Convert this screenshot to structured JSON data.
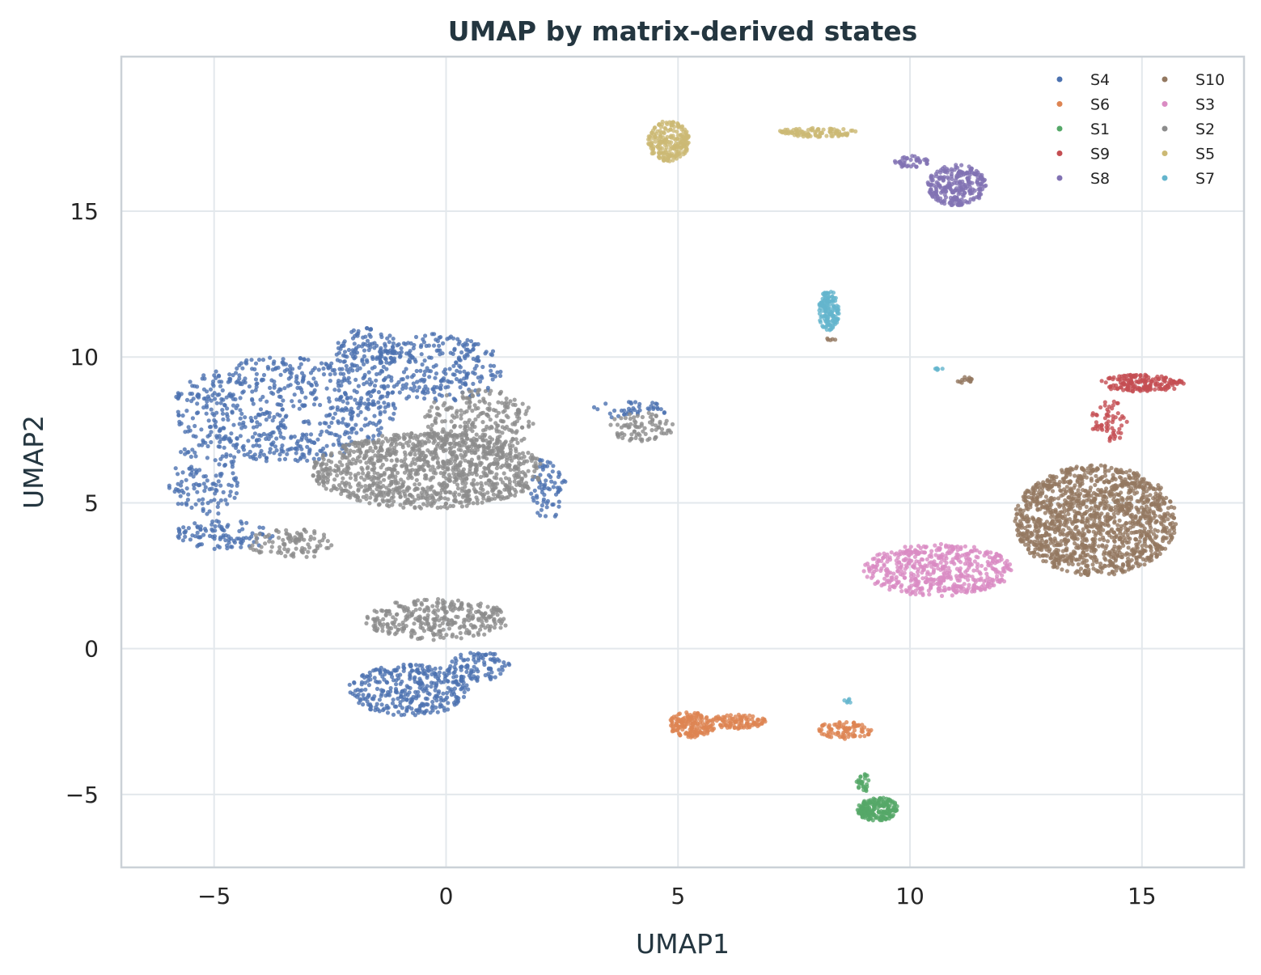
{
  "chart_data": {
    "type": "scatter",
    "title": "UMAP by matrix-derived states",
    "xlabel": "UMAP1",
    "ylabel": "UMAP2",
    "xlim": [
      -7,
      17.2
    ],
    "ylim": [
      -7.5,
      20.3
    ],
    "xticks": [
      -5,
      0,
      5,
      10,
      15
    ],
    "yticks": [
      -5,
      0,
      5,
      10,
      15
    ],
    "xtick_labels": [
      "−5",
      "0",
      "5",
      "10",
      "15"
    ],
    "ytick_labels": [
      "−5",
      "0",
      "5",
      "10",
      "15"
    ],
    "grid": true,
    "legend_position": "top-right",
    "legend_columns": 2,
    "series": [
      {
        "name": "S4",
        "color": "#4c72b0",
        "clusters": [
          {
            "cx": -3.5,
            "cy": 8.2,
            "rx": 2.4,
            "ry": 1.8,
            "n": 650
          },
          {
            "cx": -1.7,
            "cy": 10.2,
            "rx": 0.7,
            "ry": 0.8,
            "n": 120
          },
          {
            "cx": -0.2,
            "cy": 9.6,
            "rx": 1.4,
            "ry": 1.2,
            "n": 260
          },
          {
            "cx": -5.2,
            "cy": 5.8,
            "rx": 0.8,
            "ry": 1.3,
            "n": 120
          },
          {
            "cx": -4.8,
            "cy": 3.9,
            "rx": 1.1,
            "ry": 0.5,
            "n": 100
          },
          {
            "cx": 2.2,
            "cy": 5.5,
            "rx": 0.4,
            "ry": 1.1,
            "n": 70
          },
          {
            "cx": 3.9,
            "cy": 8.2,
            "rx": 0.9,
            "ry": 0.3,
            "n": 40
          },
          {
            "cx": -0.8,
            "cy": -1.4,
            "rx": 1.3,
            "ry": 0.9,
            "n": 330
          },
          {
            "cx": 0.7,
            "cy": -0.6,
            "rx": 0.7,
            "ry": 0.5,
            "n": 90
          }
        ]
      },
      {
        "name": "S6",
        "color": "#dd8452",
        "clusters": [
          {
            "cx": 5.3,
            "cy": -2.6,
            "rx": 0.5,
            "ry": 0.45,
            "n": 160
          },
          {
            "cx": 6.3,
            "cy": -2.5,
            "rx": 0.6,
            "ry": 0.25,
            "n": 100
          },
          {
            "cx": 8.6,
            "cy": -2.8,
            "rx": 0.6,
            "ry": 0.3,
            "n": 90
          }
        ]
      },
      {
        "name": "S1",
        "color": "#55a868",
        "clusters": [
          {
            "cx": 9.3,
            "cy": -5.5,
            "rx": 0.45,
            "ry": 0.4,
            "n": 190
          },
          {
            "cx": 9.0,
            "cy": -4.6,
            "rx": 0.15,
            "ry": 0.3,
            "n": 30
          }
        ]
      },
      {
        "name": "S9",
        "color": "#c44e52",
        "clusters": [
          {
            "cx": 15.0,
            "cy": 9.1,
            "rx": 0.9,
            "ry": 0.3,
            "n": 180
          },
          {
            "cx": 14.3,
            "cy": 7.8,
            "rx": 0.4,
            "ry": 0.7,
            "n": 60
          }
        ]
      },
      {
        "name": "S8",
        "color": "#8172b3",
        "clusters": [
          {
            "cx": 11.0,
            "cy": 15.9,
            "rx": 0.65,
            "ry": 0.7,
            "n": 260
          },
          {
            "cx": 10.0,
            "cy": 16.7,
            "rx": 0.4,
            "ry": 0.2,
            "n": 40
          }
        ]
      },
      {
        "name": "S10",
        "color": "#937860",
        "clusters": [
          {
            "cx": 14.0,
            "cy": 4.4,
            "rx": 1.75,
            "ry": 1.9,
            "n": 1400
          },
          {
            "cx": 11.2,
            "cy": 9.2,
            "rx": 0.2,
            "ry": 0.12,
            "n": 14
          },
          {
            "cx": 8.3,
            "cy": 10.6,
            "rx": 0.1,
            "ry": 0.08,
            "n": 5
          }
        ]
      },
      {
        "name": "S3",
        "color": "#da8bc3",
        "clusters": [
          {
            "cx": 10.6,
            "cy": 2.7,
            "rx": 1.6,
            "ry": 0.9,
            "n": 520
          }
        ]
      },
      {
        "name": "S2",
        "color": "#8c8c8c",
        "clusters": [
          {
            "cx": -0.4,
            "cy": 6.1,
            "rx": 2.5,
            "ry": 1.3,
            "n": 1100
          },
          {
            "cx": 0.7,
            "cy": 7.8,
            "rx": 1.2,
            "ry": 1.1,
            "n": 250
          },
          {
            "cx": 4.2,
            "cy": 7.6,
            "rx": 0.7,
            "ry": 0.5,
            "n": 80
          },
          {
            "cx": -3.3,
            "cy": 3.6,
            "rx": 1.0,
            "ry": 0.5,
            "n": 100
          },
          {
            "cx": -0.2,
            "cy": 1.0,
            "rx": 1.6,
            "ry": 0.7,
            "n": 320
          }
        ]
      },
      {
        "name": "S5",
        "color": "#ccb974",
        "clusters": [
          {
            "cx": 4.8,
            "cy": 17.4,
            "rx": 0.45,
            "ry": 0.7,
            "n": 220
          },
          {
            "cx": 8.0,
            "cy": 17.7,
            "rx": 0.9,
            "ry": 0.15,
            "n": 100
          }
        ]
      },
      {
        "name": "S7",
        "color": "#64b5cd",
        "clusters": [
          {
            "cx": 8.25,
            "cy": 11.6,
            "rx": 0.22,
            "ry": 0.7,
            "n": 140
          },
          {
            "cx": 10.6,
            "cy": 9.6,
            "rx": 0.12,
            "ry": 0.05,
            "n": 6
          },
          {
            "cx": 8.65,
            "cy": -1.8,
            "rx": 0.07,
            "ry": 0.12,
            "n": 6
          }
        ]
      }
    ]
  }
}
